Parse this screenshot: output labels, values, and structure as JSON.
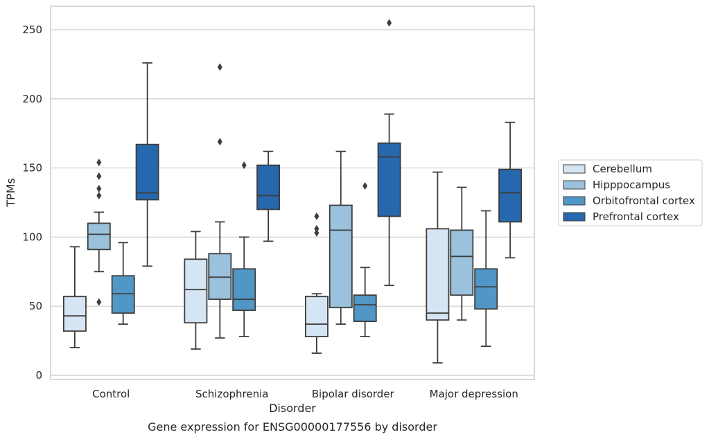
{
  "chart_data": {
    "type": "box",
    "title": "",
    "caption": "Gene expression for ENSG00000177556 by disorder",
    "xlabel": "Disorder",
    "ylabel": "TPMs",
    "ylim": [
      -3,
      267
    ],
    "yticks": [
      0,
      50,
      100,
      150,
      200,
      250
    ],
    "grid": "horizontal",
    "legend_position": "right",
    "categories": [
      "Control",
      "Schizophrenia",
      "Bipolar disorder",
      "Major depression"
    ],
    "series": [
      {
        "name": "Cerebellum",
        "color": "#d6e5f4",
        "boxes": [
          {
            "whisker_low": 20,
            "q1": 32,
            "median": 43,
            "q3": 57,
            "whisker_high": 93,
            "outliers": []
          },
          {
            "whisker_low": 19,
            "q1": 38,
            "median": 62,
            "q3": 84,
            "whisker_high": 104,
            "outliers": []
          },
          {
            "whisker_low": 16,
            "q1": 28,
            "median": 37,
            "q3": 57,
            "whisker_high": 59,
            "outliers": [
              103,
              106,
              115
            ]
          },
          {
            "whisker_low": 9,
            "q1": 40,
            "median": 45,
            "q3": 106,
            "whisker_high": 147,
            "outliers": []
          }
        ]
      },
      {
        "name": "Hipppocampus",
        "color": "#9ac2dc",
        "boxes": [
          {
            "whisker_low": 75,
            "q1": 91,
            "median": 102,
            "q3": 110,
            "whisker_high": 118,
            "outliers": [
              53,
              130,
              135,
              144,
              154
            ]
          },
          {
            "whisker_low": 27,
            "q1": 55,
            "median": 71,
            "q3": 88,
            "whisker_high": 111,
            "outliers": [
              169,
              223
            ]
          },
          {
            "whisker_low": 37,
            "q1": 49,
            "median": 105,
            "q3": 123,
            "whisker_high": 162,
            "outliers": []
          },
          {
            "whisker_low": 40,
            "q1": 58,
            "median": 86,
            "q3": 105,
            "whisker_high": 136,
            "outliers": []
          }
        ]
      },
      {
        "name": "Orbitofrontal cortex",
        "color": "#5197c6",
        "boxes": [
          {
            "whisker_low": 37,
            "q1": 45,
            "median": 59,
            "q3": 72,
            "whisker_high": 96,
            "outliers": []
          },
          {
            "whisker_low": 28,
            "q1": 47,
            "median": 55,
            "q3": 77,
            "whisker_high": 100,
            "outliers": [
              152
            ]
          },
          {
            "whisker_low": 28,
            "q1": 39,
            "median": 51,
            "q3": 58,
            "whisker_high": 78,
            "outliers": [
              137
            ]
          },
          {
            "whisker_low": 21,
            "q1": 48,
            "median": 64,
            "q3": 77,
            "whisker_high": 119,
            "outliers": []
          }
        ]
      },
      {
        "name": "Prefrontal cortex",
        "color": "#2767ad",
        "boxes": [
          {
            "whisker_low": 79,
            "q1": 127,
            "median": 132,
            "q3": 167,
            "whisker_high": 226,
            "outliers": []
          },
          {
            "whisker_low": 97,
            "q1": 120,
            "median": 130,
            "q3": 152,
            "whisker_high": 162,
            "outliers": []
          },
          {
            "whisker_low": 65,
            "q1": 115,
            "median": 158,
            "q3": 168,
            "whisker_high": 189,
            "outliers": [
              255
            ]
          },
          {
            "whisker_low": 85,
            "q1": 111,
            "median": 132,
            "q3": 149,
            "whisker_high": 183,
            "outliers": []
          }
        ]
      }
    ]
  }
}
